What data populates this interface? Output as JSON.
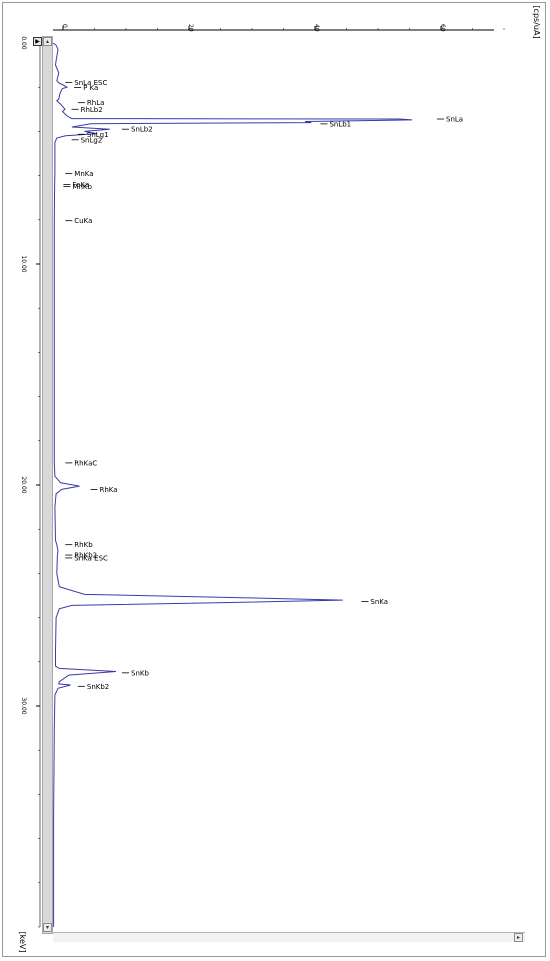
{
  "chart_data": {
    "type": "line",
    "orientation": "rotated-90",
    "x_axis": {
      "label": "[keV]",
      "range": [
        0.0,
        40.0
      ],
      "tick_labels": [
        "0.00",
        "10.00",
        "20.00",
        "30.00"
      ],
      "tick_values": [
        0,
        10,
        20,
        30
      ]
    },
    "y_axis": {
      "label": "[cps/uA]",
      "range": [
        0,
        70
      ],
      "tick_labels": [
        "0",
        "20",
        "40",
        "60"
      ],
      "tick_values": [
        0,
        20,
        40,
        60
      ]
    },
    "series": [
      {
        "color": "#3a3aa8",
        "points": [
          [
            0.0,
            0.0
          ],
          [
            0.1,
            0.5
          ],
          [
            0.3,
            0.8
          ],
          [
            0.6,
            0.6
          ],
          [
            0.8,
            0.5
          ],
          [
            1.0,
            0.4
          ],
          [
            1.2,
            0.7
          ],
          [
            1.35,
            0.9
          ],
          [
            1.5,
            0.8
          ],
          [
            1.7,
            0.6
          ],
          [
            1.8,
            0.9
          ],
          [
            1.9,
            1.6
          ],
          [
            2.0,
            2.2
          ],
          [
            2.06,
            1.5
          ],
          [
            2.1,
            1.4
          ],
          [
            2.3,
            1.1
          ],
          [
            2.55,
            0.9
          ],
          [
            2.6,
            0.6
          ],
          [
            2.8,
            1.3
          ],
          [
            2.9,
            1.6
          ],
          [
            3.0,
            1.9
          ],
          [
            3.1,
            1.5
          ],
          [
            3.3,
            2.2
          ],
          [
            3.42,
            3.0
          ],
          [
            3.44,
            55.0
          ],
          [
            3.48,
            57.0
          ],
          [
            3.55,
            40.0
          ],
          [
            3.6,
            41.0
          ],
          [
            3.65,
            6.0
          ],
          [
            3.8,
            3.0
          ],
          [
            3.9,
            9.0
          ],
          [
            4.0,
            5.0
          ],
          [
            4.1,
            7.0
          ],
          [
            4.2,
            2.0
          ],
          [
            4.3,
            0.6
          ],
          [
            4.5,
            0.3
          ],
          [
            5.0,
            0.3
          ],
          [
            5.9,
            0.3
          ],
          [
            6.5,
            0.25
          ],
          [
            8.0,
            0.2
          ],
          [
            10.0,
            0.2
          ],
          [
            12.0,
            0.2
          ],
          [
            14.0,
            0.2
          ],
          [
            16.0,
            0.2
          ],
          [
            18.0,
            0.2
          ],
          [
            19.0,
            0.2
          ],
          [
            19.6,
            0.3
          ],
          [
            19.9,
            1.2
          ],
          [
            20.05,
            4.2
          ],
          [
            20.2,
            1.4
          ],
          [
            20.4,
            0.5
          ],
          [
            21.0,
            0.3
          ],
          [
            22.5,
            0.4
          ],
          [
            22.7,
            0.6
          ],
          [
            23.0,
            0.8
          ],
          [
            23.17,
            0.7
          ],
          [
            24.0,
            0.6
          ],
          [
            24.6,
            1.0
          ],
          [
            24.95,
            5.0
          ],
          [
            25.1,
            30.0
          ],
          [
            25.21,
            46.0
          ],
          [
            25.33,
            26.0
          ],
          [
            25.45,
            3.0
          ],
          [
            25.6,
            1.0
          ],
          [
            26.0,
            0.5
          ],
          [
            27.5,
            0.4
          ],
          [
            28.2,
            0.4
          ],
          [
            28.3,
            1.0
          ],
          [
            28.44,
            10.0
          ],
          [
            28.6,
            2.5
          ],
          [
            28.9,
            1.0
          ],
          [
            29.0,
            0.9
          ],
          [
            29.05,
            2.8
          ],
          [
            29.2,
            0.8
          ],
          [
            29.5,
            0.3
          ],
          [
            31.0,
            0.2
          ],
          [
            35.0,
            0.1
          ],
          [
            40.0,
            0.1
          ]
        ]
      }
    ],
    "peak_labels": [
      {
        "label": "SnLa ESC",
        "energy": 1.78,
        "intensity": 1.0
      },
      {
        "label": "P Ka",
        "energy": 2.01,
        "intensity": 2.4
      },
      {
        "label": "RhLa",
        "energy": 2.7,
        "intensity": 3.0
      },
      {
        "label": "RhLb2",
        "energy": 3.0,
        "intensity": 2.0
      },
      {
        "label": "SnLa",
        "energy": 3.44,
        "intensity": 60.0
      },
      {
        "label": "SnLb1",
        "energy": 3.66,
        "intensity": 41.5
      },
      {
        "label": "SnLb2",
        "energy": 3.9,
        "intensity": 10.0
      },
      {
        "label": "SnLg1",
        "energy": 4.13,
        "intensity": 3.0
      },
      {
        "label": "SnLg2",
        "energy": 4.38,
        "intensity": 2.0
      },
      {
        "label": "MnKa",
        "energy": 5.9,
        "intensity": 1.0
      },
      {
        "label": "FeKa",
        "energy": 6.4,
        "intensity": 0.7
      },
      {
        "label": "MnKb",
        "energy": 6.49,
        "intensity": 0.7
      },
      {
        "label": "CuKa",
        "energy": 8.04,
        "intensity": 1.0
      },
      {
        "label": "RhKaC",
        "energy": 19.0,
        "intensity": 1.0
      },
      {
        "label": "RhKa",
        "energy": 20.2,
        "intensity": 5.0
      },
      {
        "label": "RhKb",
        "energy": 22.7,
        "intensity": 1.0
      },
      {
        "label": "RhKb2",
        "energy": 23.17,
        "intensity": 1.0
      },
      {
        "label": "SnKa ESC",
        "energy": 23.3,
        "intensity": 1.0
      },
      {
        "label": "SnKa",
        "energy": 25.27,
        "intensity": 48.0
      },
      {
        "label": "SnKb",
        "energy": 28.5,
        "intensity": 10.0
      },
      {
        "label": "SnKb2",
        "energy": 29.11,
        "intensity": 3.0
      }
    ]
  },
  "controls": {
    "nav_button_glyph": "▶",
    "scroll_up_glyph": "▴",
    "scroll_down_glyph": "▾",
    "scroll_right_glyph": "▸"
  },
  "colors": {
    "spectrum": "#3a3aa8",
    "axis": "#000000",
    "label": "#000000"
  }
}
